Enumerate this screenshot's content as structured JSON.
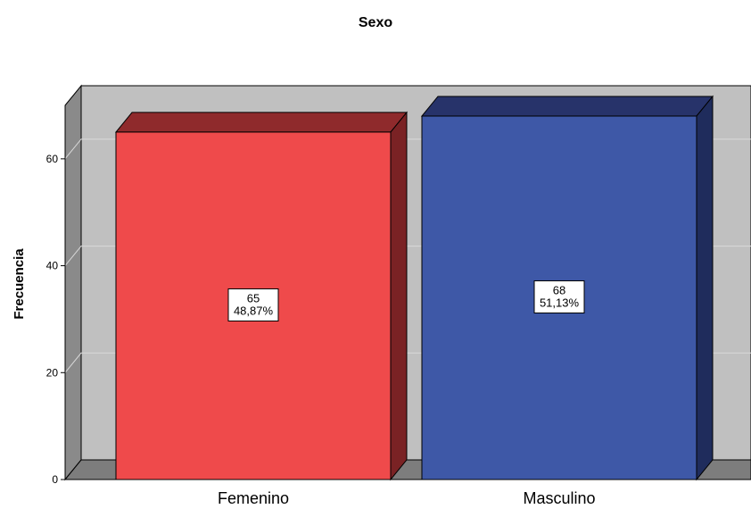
{
  "chart_data": {
    "type": "bar",
    "title": "Sexo",
    "xlabel": "",
    "ylabel": "Frecuencia",
    "categories": [
      "Femenino",
      "Masculino"
    ],
    "values": [
      65,
      68
    ],
    "percent_labels": [
      "48,87%",
      "51,13%"
    ],
    "ylim": [
      0,
      70
    ],
    "yticks": [
      0,
      20,
      40,
      60
    ],
    "grid": true,
    "legend": "none",
    "style": "3d",
    "colors": {
      "Femenino": {
        "front": "#ef4a4b",
        "top": "#8f2a2c",
        "side": "#7a2224"
      },
      "Masculino": {
        "front": "#3e58a7",
        "top": "#27336a",
        "side": "#1f2c5c"
      },
      "wall": "#c0c0c0",
      "left_wall": "#8a8a8a",
      "floor": "#7d7d7d"
    }
  }
}
